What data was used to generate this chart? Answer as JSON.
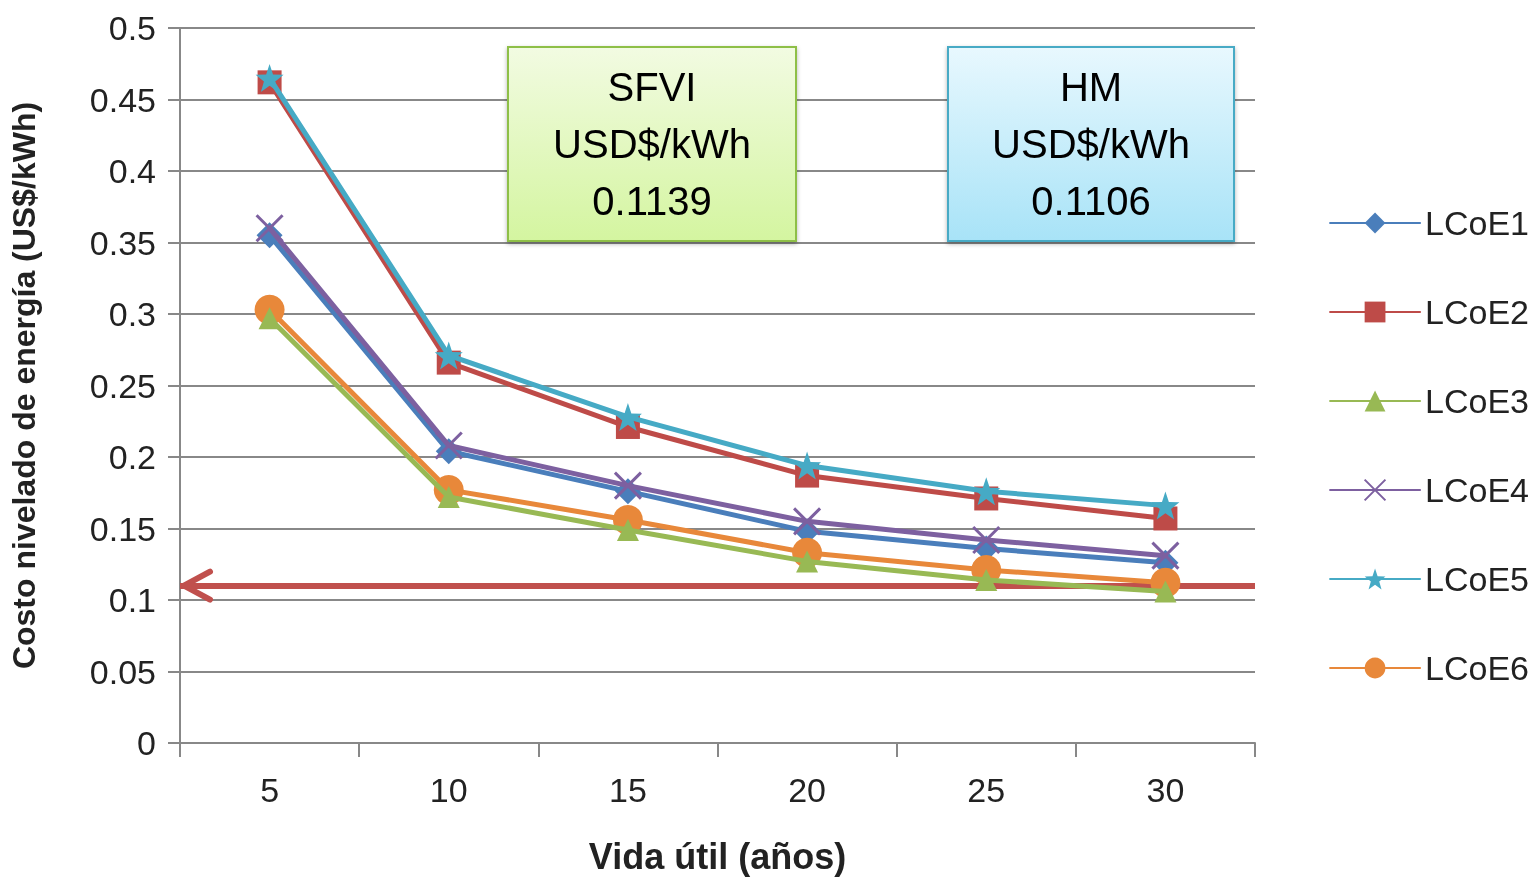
{
  "chart_data": {
    "type": "line",
    "categories": [
      "5",
      "10",
      "15",
      "20",
      "25",
      "30"
    ],
    "xlabel": "Vida útil (años)",
    "ylabel": "Costo nivelado de energía (US$/kWh)",
    "ylim": [
      0,
      0.5
    ],
    "yticks": [
      0,
      0.05,
      0.1,
      0.15,
      0.2,
      0.25,
      0.3,
      0.35,
      0.4,
      0.45,
      0.5
    ],
    "grid": "y",
    "legend": "right",
    "series": [
      {
        "name": "LCoE1",
        "color": "#4a7ebb",
        "marker": "diamond",
        "values": [
          0.355,
          0.204,
          0.176,
          0.148,
          0.136,
          0.126
        ]
      },
      {
        "name": "LCoE2",
        "color": "#be4b48",
        "marker": "square",
        "values": [
          0.462,
          0.266,
          0.221,
          0.187,
          0.171,
          0.157
        ]
      },
      {
        "name": "LCoE3",
        "color": "#98b954",
        "marker": "triangle",
        "values": [
          0.297,
          0.172,
          0.149,
          0.127,
          0.114,
          0.106
        ]
      },
      {
        "name": "LCoE4",
        "color": "#7d60a0",
        "marker": "cross",
        "values": [
          0.36,
          0.208,
          0.18,
          0.155,
          0.142,
          0.131
        ]
      },
      {
        "name": "LCoE5",
        "color": "#46aac5",
        "marker": "star",
        "values": [
          0.465,
          0.271,
          0.228,
          0.194,
          0.176,
          0.166
        ]
      },
      {
        "name": "LCoE6",
        "color": "#e8883a",
        "marker": "circle",
        "values": [
          0.303,
          0.177,
          0.156,
          0.133,
          0.121,
          0.112
        ]
      }
    ],
    "ref_lines": [
      {
        "axis": "y",
        "value": 0.11,
        "color": "#c0504d"
      }
    ],
    "annotations": [
      "SFVI\nUSD$/kWh\n0.1139",
      "HM\nUSD$/kWh\n0.1106"
    ]
  }
}
